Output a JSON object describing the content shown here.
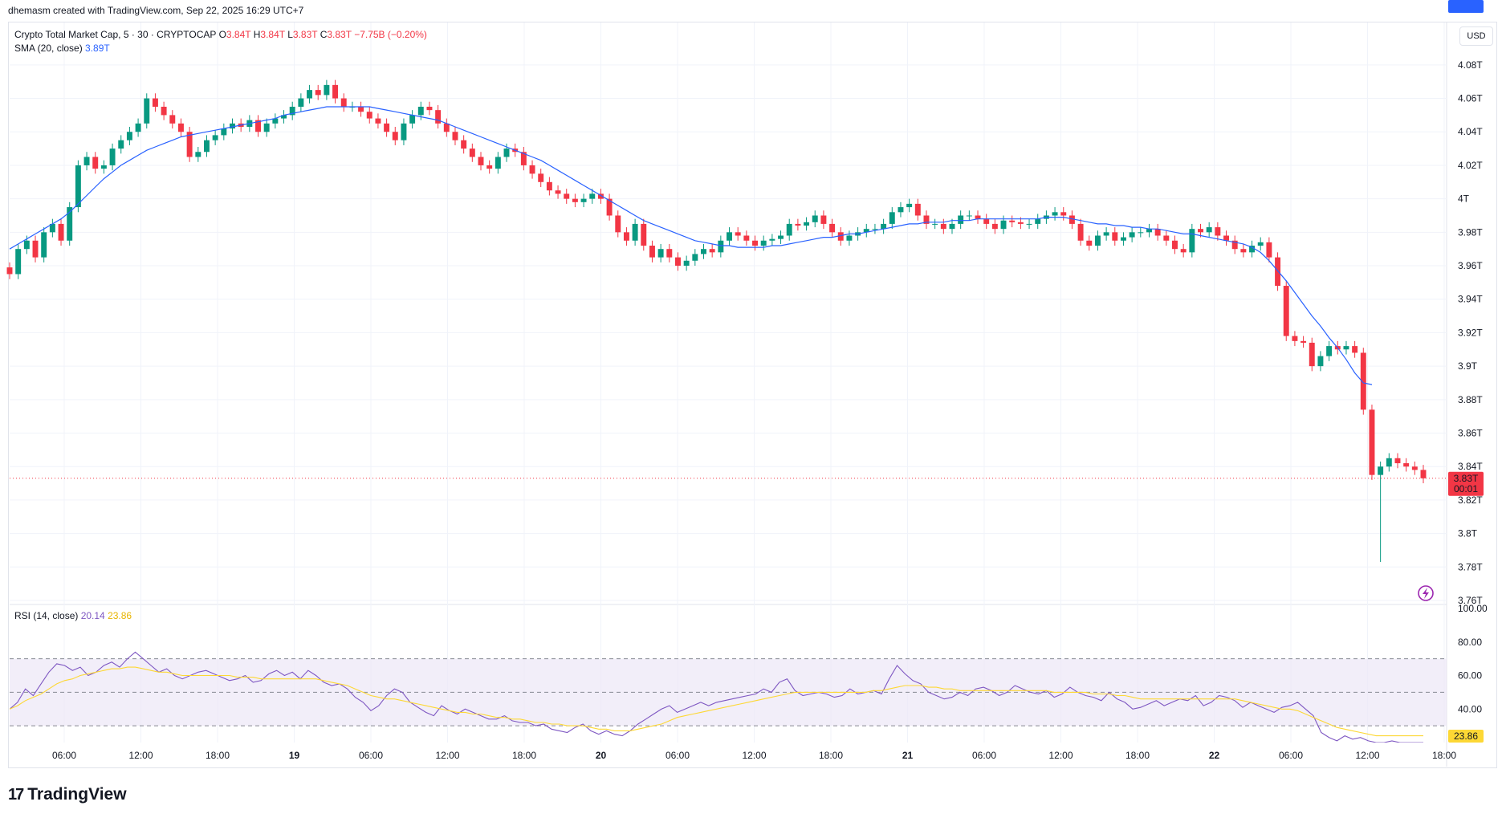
{
  "header": {
    "credit": "dhemasm created with TradingView.com, Sep 22, 2025 16:29 UTC+7"
  },
  "legend": {
    "symbol": "Crypto Total Market Cap, 5 · 30 · CRYPTOCAP",
    "o_label": "O",
    "o_value": "3.84T",
    "h_label": "H",
    "h_value": "3.84T",
    "l_label": "L",
    "l_value": "3.83T",
    "c_label": "C",
    "c_value": "3.83T",
    "change": "−7.75B (−0.20%)",
    "sma_label": "SMA (20, close)",
    "sma_value": "3.89T"
  },
  "rsi_legend": {
    "label": "RSI (14, close)",
    "rsi_value": "20.14",
    "rsi_ma_value": "23.86"
  },
  "currency": "USD",
  "brand": {
    "mark": "17",
    "name": "TradingView"
  },
  "colors": {
    "up": "#089981",
    "down": "#f23645",
    "sma": "#2962ff",
    "rsi": "#7e57c2",
    "rsi_ma": "#fdd835",
    "rsi_band": "#ede7f6",
    "price_badge": "#f23645",
    "sma_badge": "#2962ff",
    "rsi_badge": "#fdd835",
    "alert_icon": "#9c27b0"
  },
  "icons": {
    "alert": "lightning-alert-icon"
  },
  "chart_data": [
    {
      "type": "candlestick",
      "title": "Crypto Total Market Cap, 5 · 30 · CRYPTOCAP",
      "interval": "30",
      "ylim": [
        3.76,
        4.09
      ],
      "y_ticks": [
        "4.08T",
        "4.06T",
        "4.04T",
        "4.02T",
        "4T",
        "3.98T",
        "3.96T",
        "3.94T",
        "3.92T",
        "3.9T",
        "3.88T",
        "3.86T",
        "3.84T",
        "3.82T",
        "3.8T",
        "3.78T",
        "3.76T"
      ],
      "x_ticks": [
        "06:00",
        "12:00",
        "18:00",
        "19",
        "06:00",
        "12:00",
        "18:00",
        "20",
        "06:00",
        "12:00",
        "18:00",
        "21",
        "06:00",
        "12:00",
        "18:00",
        "22",
        "06:00",
        "12:00",
        "18:00"
      ],
      "last_price_label": "3.83T",
      "countdown_label": "00:01",
      "sma_label_value": "3.89T",
      "closes": [
        3.955,
        3.97,
        3.975,
        3.965,
        3.98,
        3.985,
        3.975,
        3.995,
        4.02,
        4.025,
        4.018,
        4.02,
        4.03,
        4.035,
        4.04,
        4.045,
        4.06,
        4.055,
        4.05,
        4.045,
        4.04,
        4.025,
        4.028,
        4.035,
        4.038,
        4.042,
        4.045,
        4.043,
        4.047,
        4.04,
        4.045,
        4.048,
        4.05,
        4.055,
        4.06,
        4.065,
        4.062,
        4.068,
        4.06,
        4.055,
        4.055,
        4.052,
        4.048,
        4.045,
        4.04,
        4.035,
        4.045,
        4.05,
        4.055,
        4.053,
        4.045,
        4.04,
        4.035,
        4.03,
        4.025,
        4.02,
        4.018,
        4.025,
        4.03,
        4.028,
        4.02,
        4.015,
        4.01,
        4.005,
        4.003,
        4.0,
        3.998,
        4.0,
        4.003,
        4.0,
        3.99,
        3.98,
        3.975,
        3.985,
        3.972,
        3.965,
        3.97,
        3.965,
        3.96,
        3.963,
        3.967,
        3.97,
        3.968,
        3.975,
        3.98,
        3.978,
        3.975,
        3.972,
        3.975,
        3.976,
        3.978,
        3.985,
        3.984,
        3.986,
        3.99,
        3.985,
        3.98,
        3.975,
        3.978,
        3.98,
        3.982,
        3.982,
        3.985,
        3.992,
        3.995,
        3.997,
        3.99,
        3.985,
        3.985,
        3.982,
        3.985,
        3.99,
        3.99,
        3.988,
        3.985,
        3.982,
        3.987,
        3.986,
        3.985,
        3.985,
        3.988,
        3.99,
        3.992,
        3.99,
        3.985,
        3.975,
        3.972,
        3.978,
        3.98,
        3.975,
        3.977,
        3.98,
        3.98,
        3.982,
        3.978,
        3.975,
        3.97,
        3.968,
        3.982,
        3.98,
        3.983,
        3.978,
        3.975,
        3.97,
        3.968,
        3.972,
        3.974,
        3.965,
        3.948,
        3.918,
        3.915,
        3.914,
        3.9,
        3.906,
        3.912,
        3.91,
        3.912,
        3.908,
        3.874,
        3.835,
        3.84,
        3.845,
        3.842,
        3.84,
        3.838,
        3.833
      ],
      "sma": [
        3.97,
        3.973,
        3.976,
        3.979,
        3.982,
        3.985,
        3.988,
        3.992,
        3.997,
        4.002,
        4.007,
        4.012,
        4.016,
        4.02,
        4.023,
        4.026,
        4.029,
        4.031,
        4.033,
        4.035,
        4.037,
        4.038,
        4.039,
        4.04,
        4.041,
        4.042,
        4.043,
        4.044,
        4.045,
        4.046,
        4.047,
        4.048,
        4.05,
        4.051,
        4.052,
        4.053,
        4.054,
        4.055,
        4.055,
        4.055,
        4.055,
        4.055,
        4.055,
        4.054,
        4.053,
        4.052,
        4.051,
        4.05,
        4.049,
        4.048,
        4.047,
        4.045,
        4.043,
        4.041,
        4.039,
        4.037,
        4.035,
        4.033,
        4.031,
        4.029,
        4.027,
        4.025,
        4.023,
        4.02,
        4.017,
        4.014,
        4.011,
        4.008,
        4.005,
        4.002,
        3.999,
        3.996,
        3.993,
        3.99,
        3.987,
        3.985,
        3.983,
        3.981,
        3.979,
        3.977,
        3.975,
        3.974,
        3.973,
        3.972,
        3.972,
        3.971,
        3.971,
        3.971,
        3.971,
        3.972,
        3.972,
        3.973,
        3.974,
        3.975,
        3.976,
        3.977,
        3.977,
        3.978,
        3.979,
        3.979,
        3.98,
        3.981,
        3.982,
        3.983,
        3.984,
        3.985,
        3.985,
        3.986,
        3.986,
        3.986,
        3.987,
        3.987,
        3.987,
        3.988,
        3.988,
        3.988,
        3.988,
        3.988,
        3.988,
        3.988,
        3.988,
        3.989,
        3.989,
        3.989,
        3.988,
        3.987,
        3.986,
        3.985,
        3.985,
        3.984,
        3.984,
        3.983,
        3.983,
        3.982,
        3.982,
        3.981,
        3.98,
        3.979,
        3.979,
        3.978,
        3.977,
        3.976,
        3.975,
        3.974,
        3.973,
        3.971,
        3.968,
        3.963,
        3.957,
        3.951,
        3.944,
        3.937,
        3.93,
        3.924,
        3.917,
        3.911,
        3.904,
        3.896,
        3.89,
        3.889
      ]
    },
    {
      "type": "line",
      "title": "RSI (14, close)",
      "ylim": [
        20,
        100
      ],
      "y_ticks": [
        "100.00",
        "80.00",
        "60.00",
        "40.00"
      ],
      "bands": [
        30,
        50,
        70
      ],
      "rsi_badge_label": "23.86",
      "series": [
        {
          "name": "RSI",
          "values": [
            40,
            44,
            52,
            48,
            55,
            62,
            67,
            66,
            63,
            65,
            60,
            62,
            66,
            68,
            65,
            70,
            74,
            70,
            66,
            62,
            64,
            60,
            58,
            60,
            62,
            63,
            61,
            59,
            57,
            58,
            60,
            56,
            57,
            61,
            63,
            60,
            62,
            58,
            63,
            60,
            56,
            54,
            55,
            52,
            47,
            44,
            39,
            42,
            48,
            52,
            50,
            44,
            41,
            38,
            36,
            42,
            39,
            37,
            40,
            38,
            36,
            34,
            34,
            36,
            33,
            32,
            32,
            30,
            31,
            28,
            27,
            26,
            29,
            31,
            27,
            25,
            27,
            25,
            24,
            27,
            31,
            34,
            37,
            40,
            42,
            38,
            40,
            42,
            44,
            42,
            44,
            45,
            46,
            47,
            48,
            49,
            52,
            50,
            56,
            58,
            51,
            48,
            49,
            50,
            49,
            47,
            48,
            52,
            49,
            50,
            51,
            49,
            58,
            66,
            61,
            57,
            55,
            50,
            48,
            46,
            47,
            50,
            48,
            52,
            53,
            51,
            48,
            50,
            54,
            52,
            50,
            49,
            51,
            47,
            49,
            53,
            50,
            48,
            47,
            45,
            50,
            46,
            44,
            40,
            41,
            43,
            45,
            42,
            44,
            46,
            45,
            48,
            42,
            44,
            48,
            47,
            45,
            41,
            44,
            42,
            40,
            38,
            41,
            42,
            44,
            40,
            36,
            26,
            23,
            21,
            24,
            22,
            23,
            21,
            20,
            20,
            21,
            20,
            20,
            20,
            20
          ]
        },
        {
          "name": "RSI-based MA",
          "values": [
            40,
            42,
            45,
            47,
            49,
            52,
            55,
            57,
            58,
            60,
            61,
            62,
            63,
            64,
            64,
            65,
            65,
            64,
            63,
            62,
            62,
            61,
            60,
            60,
            60,
            60,
            60,
            60,
            60,
            59,
            59,
            59,
            58,
            58,
            58,
            58,
            58,
            58,
            58,
            58,
            57,
            56,
            55,
            54,
            52,
            50,
            48,
            47,
            46,
            46,
            45,
            44,
            43,
            42,
            41,
            40,
            39,
            38,
            38,
            37,
            37,
            36,
            35,
            35,
            34,
            34,
            33,
            32,
            32,
            31,
            31,
            30,
            30,
            30,
            29,
            28,
            28,
            27,
            27,
            27,
            28,
            29,
            30,
            31,
            33,
            35,
            36,
            37,
            38,
            39,
            40,
            41,
            42,
            43,
            44,
            45,
            46,
            47,
            48,
            49,
            50,
            50,
            50,
            50,
            50,
            50,
            50,
            50,
            50,
            50,
            51,
            51,
            52,
            53,
            54,
            54,
            54,
            53,
            53,
            52,
            52,
            51,
            51,
            51,
            51,
            51,
            51,
            51,
            51,
            51,
            51,
            51,
            51,
            50,
            50,
            50,
            50,
            50,
            49,
            49,
            49,
            48,
            48,
            47,
            46,
            46,
            46,
            46,
            46,
            46,
            46,
            46,
            46,
            46,
            46,
            46,
            46,
            45,
            44,
            43,
            42,
            41,
            40,
            40,
            39,
            37,
            35,
            33,
            31,
            29,
            28,
            27,
            26,
            25,
            24,
            24,
            24,
            24,
            24,
            24,
            24
          ]
        }
      ]
    }
  ]
}
